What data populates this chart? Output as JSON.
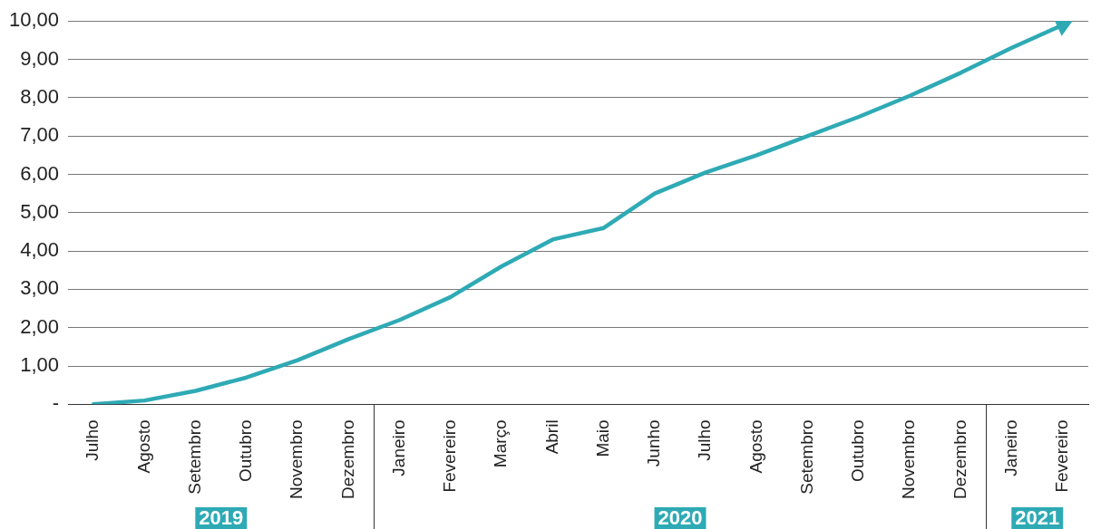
{
  "chart_data": {
    "type": "line",
    "categories": [
      "Julho",
      "Agosto",
      "Setembro",
      "Outubro",
      "Novembro",
      "Dezembro",
      "Janeiro",
      "Fevereiro",
      "Março",
      "Abril",
      "Maio",
      "Junho",
      "Julho",
      "Agosto",
      "Setembro",
      "Outubro",
      "Novembro",
      "Dezembro",
      "Janeiro",
      "Fevereiro"
    ],
    "series": [
      {
        "color": "#2eaab5",
        "values": [
          0,
          0.1,
          0.35,
          0.7,
          1.15,
          1.7,
          2.2,
          2.8,
          3.6,
          4.3,
          4.6,
          5.5,
          6.05,
          6.5,
          7.0,
          7.5,
          8.05,
          8.65,
          9.3,
          9.9
        ]
      }
    ],
    "ylim": [
      0,
      10
    ],
    "yticks": [
      {
        "value": 0,
        "label": "-"
      },
      {
        "value": 1,
        "label": "1,00"
      },
      {
        "value": 2,
        "label": "2,00"
      },
      {
        "value": 3,
        "label": "3,00"
      },
      {
        "value": 4,
        "label": "4,00"
      },
      {
        "value": 5,
        "label": "5,00"
      },
      {
        "value": 6,
        "label": "6,00"
      },
      {
        "value": 7,
        "label": "7,00"
      },
      {
        "value": 8,
        "label": "8,00"
      },
      {
        "value": 9,
        "label": "9,00"
      },
      {
        "value": 10,
        "label": "10,00"
      }
    ],
    "grid": "y",
    "legend": false,
    "marker": "none",
    "line_style": "solid",
    "annotations": [
      "2019",
      "2020",
      "2021"
    ]
  }
}
